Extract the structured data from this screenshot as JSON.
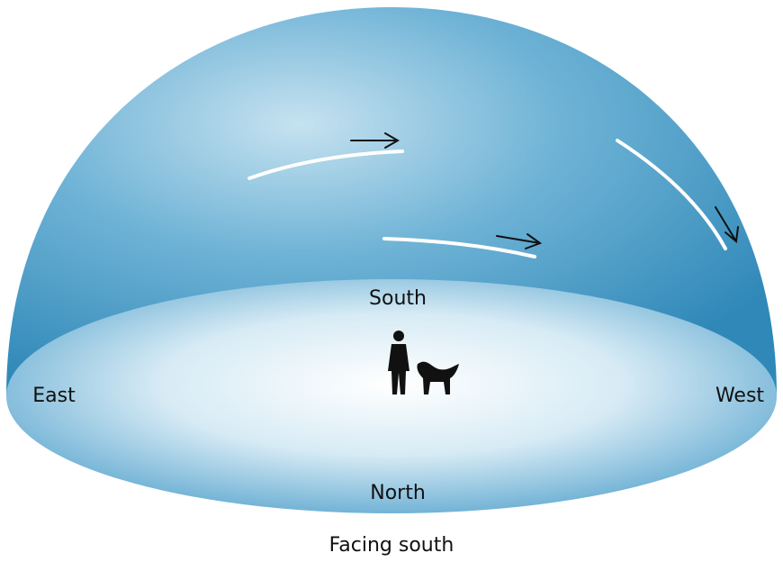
{
  "labels": {
    "south": "South",
    "east": "East",
    "west": "West",
    "north": "North"
  },
  "caption": "Facing south"
}
